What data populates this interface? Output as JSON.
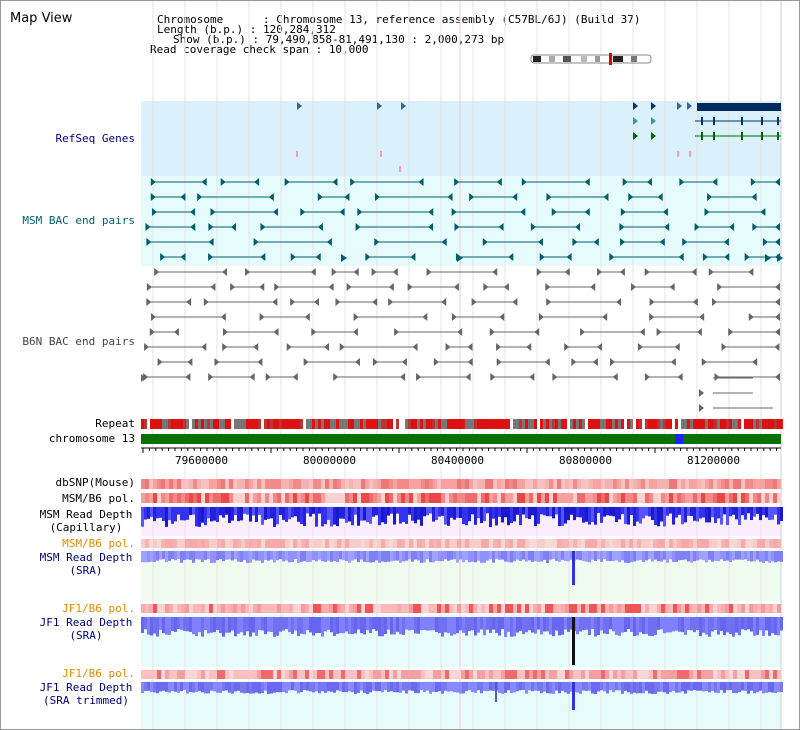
{
  "title": "Map View",
  "header": {
    "chromosome_label": "Chromosome      : ",
    "chromosome_value": "Chromosome 13, reference assembly (C57BL/6J) (Build 37)",
    "length_label": "Length (b.p.) : ",
    "length_value": "120,284,312",
    "show_label": "Show (b.p.) : ",
    "show_value": "79,490,858-81,491,130 : 2,000,273 bp",
    "coverage_label": "Read coverage check span : ",
    "coverage_value": "10,000"
  },
  "tracks": {
    "refseq": "RefSeq Genes",
    "msm_bac": "MSM BAC end pairs",
    "b6n_bac": "B6N BAC end pairs",
    "repeat": "Repeat",
    "chromosome": "chromosome 13",
    "dbsnp": "dbSNP(Mouse)",
    "msm_b6_pol_1": "MSM/B6 pol.",
    "msm_read_depth_cap_1": "MSM Read Depth",
    "msm_read_depth_cap_2": "(Capillary)",
    "msm_b6_pol_2": "MSM/B6 pol.",
    "msm_read_depth_sra_1": "MSM Read Depth",
    "msm_read_depth_sra_2": "(SRA)",
    "jf1_b6_pol_1": "JF1/B6 pol.",
    "jf1_read_depth_sra_1": "JF1 Read Depth",
    "jf1_read_depth_sra_2": "(SRA)",
    "jf1_b6_pol_2": "JF1/B6 pol.",
    "jf1_read_depth_trim_1": "JF1 Read Depth",
    "jf1_read_depth_trim_2": "(SRA trimmed)"
  },
  "axis": {
    "ticks": [
      "79600000",
      "80000000",
      "80400000",
      "80800000",
      "81200000"
    ]
  },
  "colors": {
    "navy": "#000080",
    "teal": "#005f6e",
    "orange": "#e08a00",
    "gray_text": "#444444",
    "refseq_bg": "#daf1fb",
    "msm_bac_bg": "#e6fbfb",
    "chrom_green": "#0a7000",
    "depth_blue": "#2020ee"
  }
}
